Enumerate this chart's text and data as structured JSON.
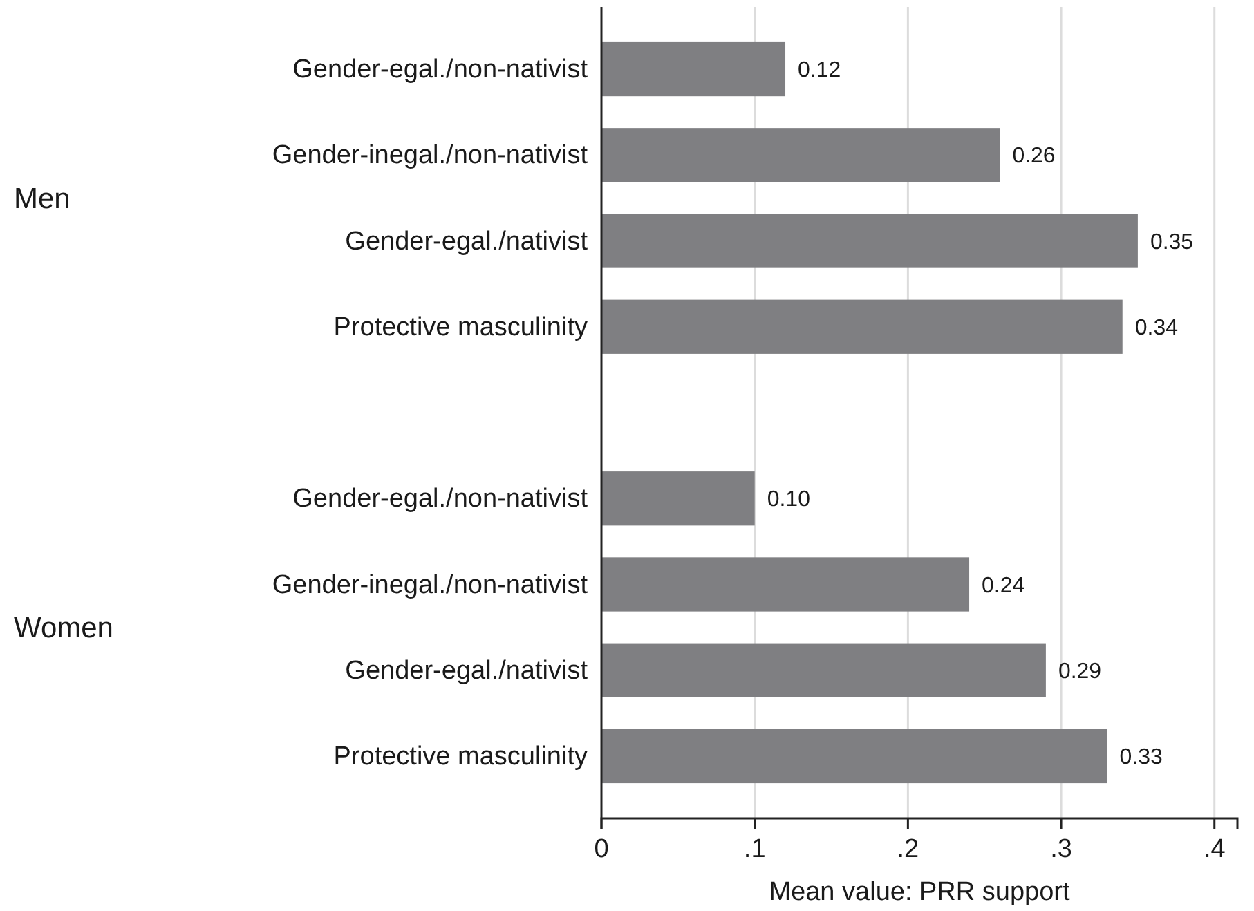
{
  "chart_data": {
    "type": "bar",
    "orientation": "horizontal",
    "xlabel": "Mean value: PRR support",
    "categories": [
      "Gender-egal./non-nativist",
      "Gender-inegal./non-nativist",
      "Gender-egal./nativist",
      "Protective masculinity",
      null,
      "Gender-egal./non-nativist",
      "Gender-inegal./non-nativist",
      "Gender-egal./nativist",
      "Protective masculinity"
    ],
    "values": [
      0.12,
      0.26,
      0.35,
      0.34,
      null,
      0.1,
      0.24,
      0.29,
      0.33
    ],
    "value_labels": [
      "0.12",
      "0.26",
      "0.35",
      "0.34",
      null,
      "0.10",
      "0.24",
      "0.29",
      "0.33"
    ],
    "color": "#7f7f82",
    "xlim": [
      0,
      0.415
    ],
    "xticks": [
      {
        "value": 0,
        "label": "0"
      },
      {
        "value": 0.1,
        "label": ".1"
      },
      {
        "value": 0.2,
        "label": ".2"
      },
      {
        "value": 0.3,
        "label": ".3"
      },
      {
        "value": 0.4,
        "label": ".4"
      }
    ],
    "grid": "x",
    "annotations": [
      "Men",
      "Women"
    ]
  }
}
